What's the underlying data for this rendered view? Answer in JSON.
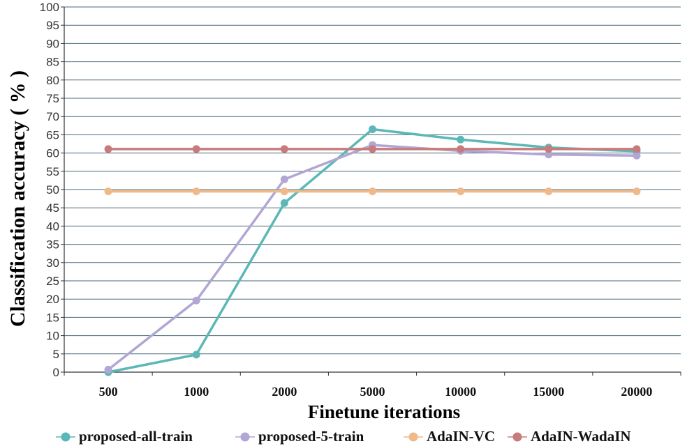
{
  "chart_data": {
    "type": "line",
    "title": "",
    "xlabel": "Finetune iterations",
    "ylabel": "Classification accuracy ( % )",
    "categories": [
      "500",
      "1000",
      "2000",
      "5000",
      "10000",
      "15000",
      "20000"
    ],
    "ylim": [
      0,
      100
    ],
    "ytick_step": 5,
    "grid": true,
    "legend_position": "bottom",
    "series": [
      {
        "name": "proposed-all-train",
        "color": "#5bb8b6",
        "values": [
          0,
          4.8,
          46.3,
          66.5,
          63.7,
          61.5,
          60.5
        ]
      },
      {
        "name": "proposed-5-train",
        "color": "#b1a6d4",
        "values": [
          0.7,
          19.6,
          52.8,
          62.2,
          60.6,
          59.6,
          59.3
        ]
      },
      {
        "name": "AdaIN-VC",
        "color": "#f0b98a",
        "values": [
          49.5,
          49.5,
          49.5,
          49.5,
          49.5,
          49.5,
          49.5
        ]
      },
      {
        "name": "AdaIN-WadaIN",
        "color": "#c87b7b",
        "values": [
          61.1,
          61.1,
          61.1,
          61.1,
          61.1,
          61.1,
          61.1
        ]
      }
    ]
  }
}
